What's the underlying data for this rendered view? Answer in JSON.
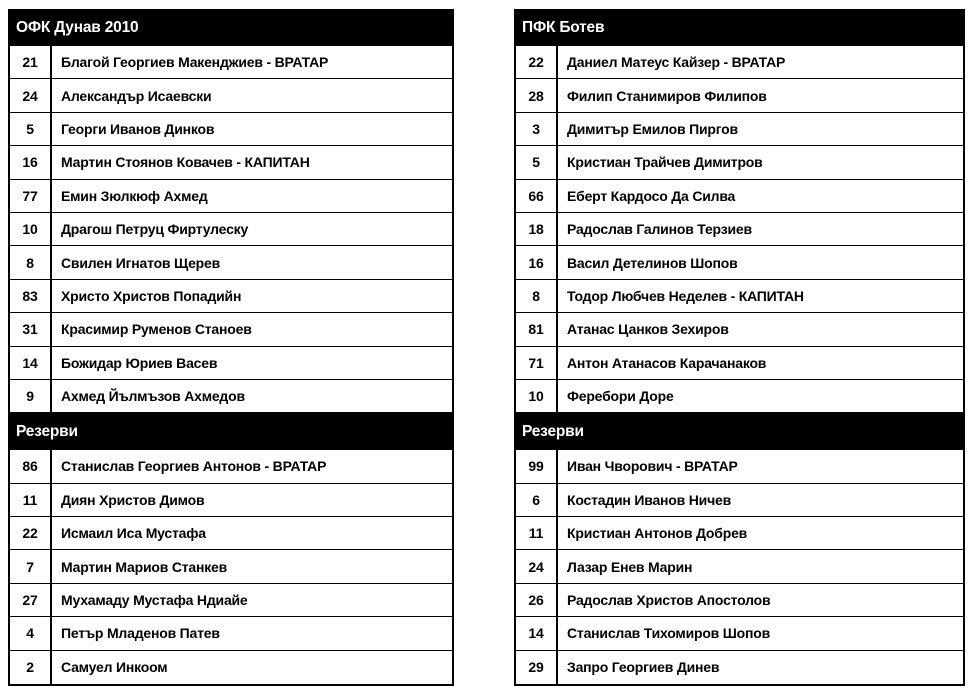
{
  "teams": [
    {
      "name": "ОФК Дунав 2010",
      "reserves_label": "Резерви",
      "starters": [
        {
          "number": "21",
          "name": "Благой Георгиев Макенджиев - ВРАТАР"
        },
        {
          "number": "24",
          "name": "Александър Исаевски"
        },
        {
          "number": "5",
          "name": "Георги Иванов Динков"
        },
        {
          "number": "16",
          "name": "Мартин Стоянов Ковачев - КАПИТАН"
        },
        {
          "number": "77",
          "name": "Емин Зюлкюф Ахмед"
        },
        {
          "number": "10",
          "name": "Драгош Петруц Фиртулеску"
        },
        {
          "number": "8",
          "name": "Свилен Игнатов Щерев"
        },
        {
          "number": "83",
          "name": "Христо Христов Попадийн"
        },
        {
          "number": "31",
          "name": "Красимир Руменов Станоев"
        },
        {
          "number": "14",
          "name": "Божидар Юриев Васев"
        },
        {
          "number": "9",
          "name": "Ахмед Йълмъзов Ахмедов"
        }
      ],
      "reserves": [
        {
          "number": "86",
          "name": "Станислав Георгиев Антонов - ВРАТАР"
        },
        {
          "number": "11",
          "name": "Диян Христов Димов"
        },
        {
          "number": "22",
          "name": "Исмаил Иса Мустафа"
        },
        {
          "number": "7",
          "name": "Мартин Мариов Станкев"
        },
        {
          "number": "27",
          "name": "Мухамаду Мустафа Ндиайе"
        },
        {
          "number": "4",
          "name": "Петър Младенов Патев"
        },
        {
          "number": "2",
          "name": "Самуел Инкоом"
        }
      ]
    },
    {
      "name": "ПФК Ботев",
      "reserves_label": "Резерви",
      "starters": [
        {
          "number": "22",
          "name": "Даниел Матеус Кайзер - ВРАТАР"
        },
        {
          "number": "28",
          "name": "Филип Станимиров Филипов"
        },
        {
          "number": "3",
          "name": "Димитър Емилов Пиргов"
        },
        {
          "number": "5",
          "name": "Кристиан Трайчев Димитров"
        },
        {
          "number": "66",
          "name": "Еберт Кардосо Да Силва"
        },
        {
          "number": "18",
          "name": "Радослав Галинов Терзиев"
        },
        {
          "number": "16",
          "name": "Васил Детелинов Шопов"
        },
        {
          "number": "8",
          "name": "Тодор Любчев Неделев - КАПИТАН"
        },
        {
          "number": "81",
          "name": "Атанас Цанков Зехиров"
        },
        {
          "number": "71",
          "name": "Антон Атанасов Карачанаков"
        },
        {
          "number": "10",
          "name": "Феребори Доре"
        }
      ],
      "reserves": [
        {
          "number": "99",
          "name": "Иван Чворович - ВРАТАР"
        },
        {
          "number": "6",
          "name": "Костадин Иванов Ничев"
        },
        {
          "number": "11",
          "name": "Кристиан Антонов Добрев"
        },
        {
          "number": "24",
          "name": "Лазар Енев Марин"
        },
        {
          "number": "26",
          "name": "Радослав Христов Апостолов"
        },
        {
          "number": "14",
          "name": "Станислав Тихомиров Шопов"
        },
        {
          "number": "29",
          "name": "Запро Георгиев Динев"
        }
      ]
    }
  ],
  "colors": {
    "header_bg": "#000000",
    "header_text": "#ffffff",
    "row_text": "#000000",
    "border": "#000000",
    "background": "#ffffff"
  }
}
